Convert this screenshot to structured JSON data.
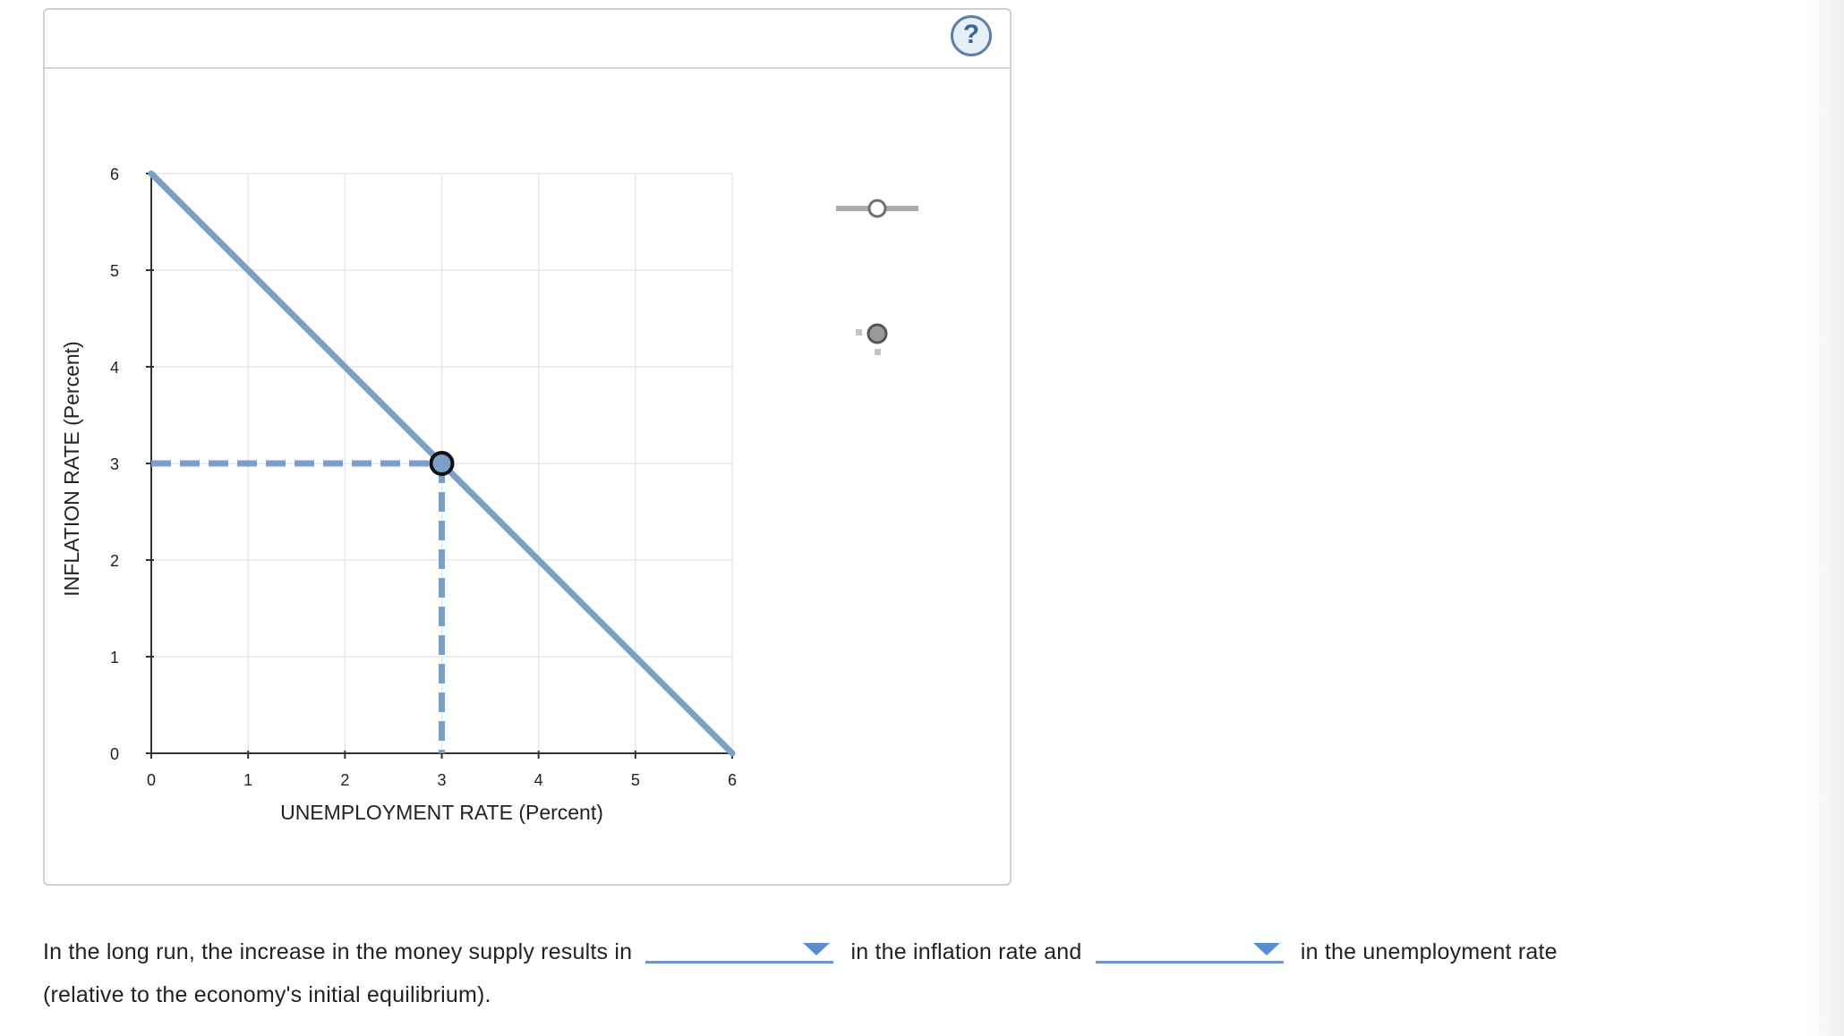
{
  "panel": {
    "help_label": "?",
    "help_icon": "question-circle-icon"
  },
  "tools": {
    "line_tool_icon": "line-tool-icon",
    "point_tool_icon": "point-tool-icon"
  },
  "chart_data": {
    "type": "line",
    "xlabel": "UNEMPLOYMENT RATE (Percent)",
    "ylabel": "INFLATION RATE (Percent)",
    "xlim": [
      0,
      6
    ],
    "ylim": [
      0,
      6
    ],
    "x_ticks": [
      "0",
      "1",
      "2",
      "3",
      "4",
      "5",
      "6"
    ],
    "y_ticks": [
      "0",
      "1",
      "2",
      "3",
      "4",
      "5",
      "6"
    ],
    "grid": true,
    "series": [
      {
        "x": [
          0,
          6
        ],
        "y": [
          6,
          0
        ],
        "color": "#7b9fc7"
      }
    ],
    "points": [
      {
        "x": 3,
        "y": 3,
        "dashed_guides": true,
        "color": "#7b9fc7"
      }
    ]
  },
  "question": {
    "text_before": "In the long run, the increase in the money supply results in",
    "dropdown1_value": "",
    "text_middle": "in the inflation rate and",
    "dropdown2_value": "",
    "text_after": "in the unemployment rate",
    "text_end": "(relative to the economy's initial equilibrium)."
  },
  "colors": {
    "accent": "#7b9fc7",
    "dropdown": "#5b8ccf",
    "help": "#3d6592"
  }
}
